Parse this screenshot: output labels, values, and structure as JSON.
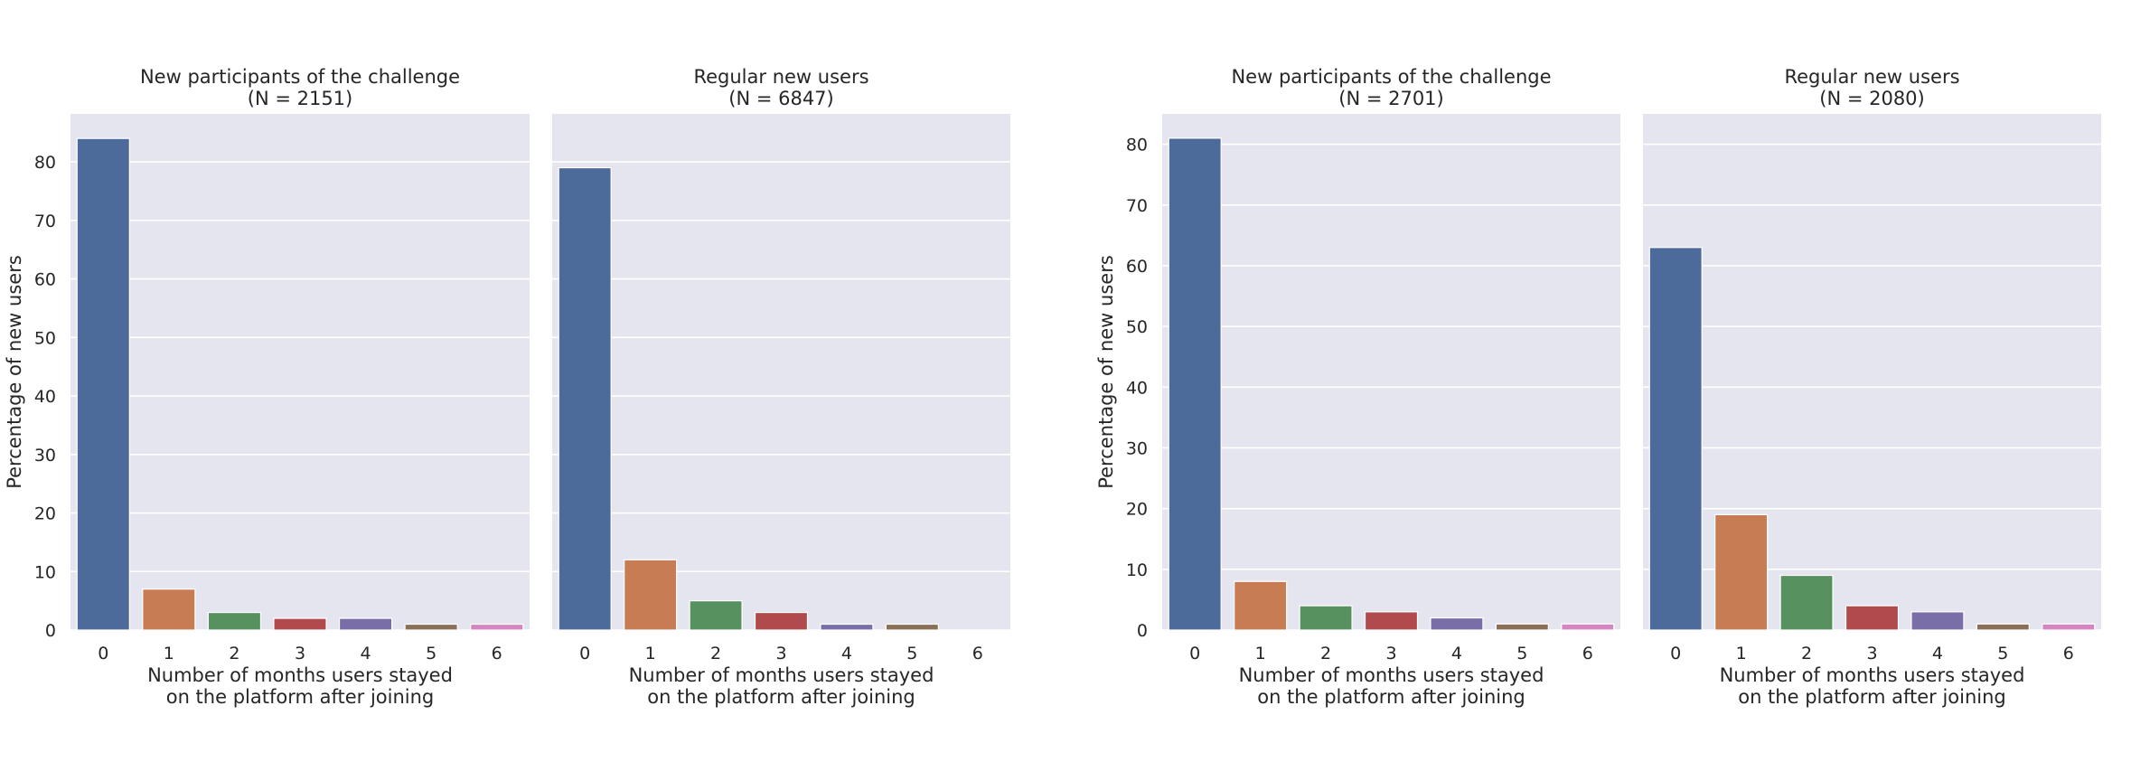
{
  "colors": {
    "panel_background": "#e5e5ef",
    "grid": "#ffffff",
    "text": "#262626",
    "bar_edge": "#ffffff"
  },
  "chart_data": [
    {
      "type": "bar",
      "title_lines": [
        "New participants of the challenge",
        "(N = 2151)"
      ],
      "categories": [
        "0",
        "1",
        "2",
        "3",
        "4",
        "5",
        "6"
      ],
      "values": [
        84,
        7,
        3,
        2,
        2,
        1,
        1
      ],
      "bar_colors": [
        "#4c6a9a",
        "#c77c54",
        "#56915f",
        "#b04a4d",
        "#7a6ea8",
        "#8a6e56",
        "#d586c0"
      ],
      "xlabel_lines": [
        "Number of months users stayed",
        "on the platform after joining"
      ],
      "ylabel": "Percentage of new users",
      "ylim": [
        0,
        88.2
      ],
      "yticks": [
        0,
        10,
        20,
        30,
        40,
        50,
        60,
        70,
        80
      ],
      "show_ytick_labels": true,
      "grid": true
    },
    {
      "type": "bar",
      "title_lines": [
        "Regular new users",
        "(N = 6847)"
      ],
      "categories": [
        "0",
        "1",
        "2",
        "3",
        "4",
        "5",
        "6"
      ],
      "values": [
        79,
        12,
        5,
        3,
        1,
        1,
        0
      ],
      "bar_colors": [
        "#4c6a9a",
        "#c77c54",
        "#56915f",
        "#b04a4d",
        "#7a6ea8",
        "#8a6e56",
        "#d586c0"
      ],
      "xlabel_lines": [
        "Number of months users stayed",
        "on the platform after joining"
      ],
      "ylabel": "",
      "ylim": [
        0,
        88.2
      ],
      "yticks": [
        0,
        10,
        20,
        30,
        40,
        50,
        60,
        70,
        80
      ],
      "show_ytick_labels": false,
      "grid": true
    },
    {
      "type": "bar",
      "title_lines": [
        "New participants of the challenge",
        "(N = 2701)"
      ],
      "categories": [
        "0",
        "1",
        "2",
        "3",
        "4",
        "5",
        "6"
      ],
      "values": [
        81,
        8,
        4,
        3,
        2,
        1,
        1
      ],
      "bar_colors": [
        "#4c6a9a",
        "#c77c54",
        "#56915f",
        "#b04a4d",
        "#7a6ea8",
        "#8a6e56",
        "#d586c0"
      ],
      "xlabel_lines": [
        "Number of months users stayed",
        "on the platform after joining"
      ],
      "ylabel": "Percentage of new users",
      "ylim": [
        0,
        85
      ],
      "yticks": [
        0,
        10,
        20,
        30,
        40,
        50,
        60,
        70,
        80
      ],
      "show_ytick_labels": true,
      "grid": true
    },
    {
      "type": "bar",
      "title_lines": [
        "Regular new users",
        "(N = 2080)"
      ],
      "categories": [
        "0",
        "1",
        "2",
        "3",
        "4",
        "5",
        "6"
      ],
      "values": [
        63,
        19,
        9,
        4,
        3,
        1,
        1
      ],
      "bar_colors": [
        "#4c6a9a",
        "#c77c54",
        "#56915f",
        "#b04a4d",
        "#7a6ea8",
        "#8a6e56",
        "#d586c0"
      ],
      "xlabel_lines": [
        "Number of months users stayed",
        "on the platform after joining"
      ],
      "ylabel": "",
      "ylim": [
        0,
        85
      ],
      "yticks": [
        0,
        10,
        20,
        30,
        40,
        50,
        60,
        70,
        80
      ],
      "show_ytick_labels": false,
      "grid": true
    }
  ]
}
